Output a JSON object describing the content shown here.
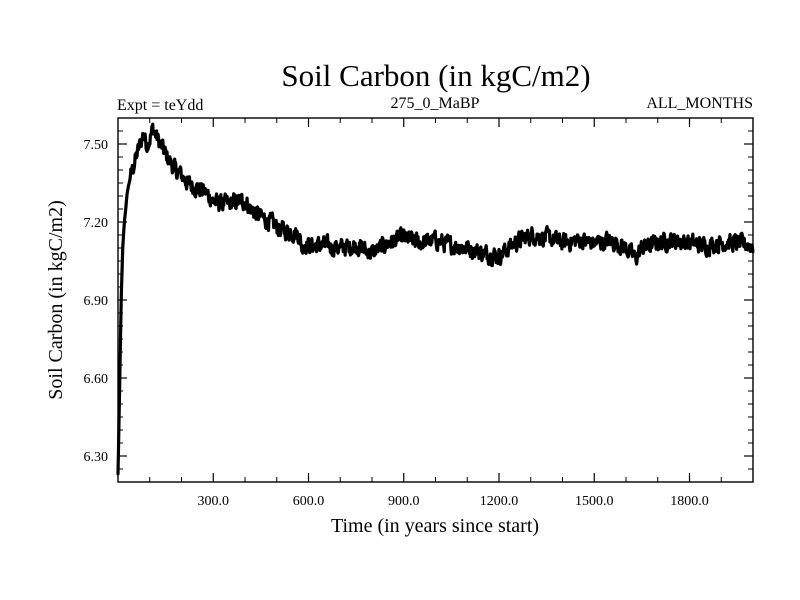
{
  "chart_data": {
    "type": "line",
    "title": "Soil Carbon (in kgC/m2)",
    "subtitle_left": "Expt = teYdd",
    "subtitle_center": "275_0_MaBP",
    "subtitle_right": "ALL_MONTHS",
    "xlabel": "Time (in years since start)",
    "ylabel": "Soil Carbon (in kgC/m2)",
    "xlim": [
      0,
      2000
    ],
    "ylim": [
      6.2,
      7.6
    ],
    "xticks": [
      300,
      600,
      900,
      1200,
      1500,
      1800
    ],
    "xtick_labels": [
      "300.0",
      "600.0",
      "900.0",
      "1200.0",
      "1500.0",
      "1800.0"
    ],
    "yticks": [
      6.3,
      6.6,
      6.9,
      7.2,
      7.5
    ],
    "ytick_labels": [
      "6.30",
      "6.60",
      "6.90",
      "7.20",
      "7.50"
    ],
    "grid": false,
    "series": [
      {
        "name": "Soil Carbon",
        "x": [
          0,
          5,
          10,
          15,
          20,
          30,
          40,
          50,
          60,
          70,
          80,
          90,
          100,
          110,
          120,
          150,
          180,
          200,
          220,
          250,
          280,
          300,
          320,
          350,
          380,
          400,
          420,
          450,
          480,
          500,
          520,
          550,
          570,
          580,
          590,
          600,
          650,
          700,
          750,
          800,
          850,
          900,
          950,
          1000,
          1050,
          1100,
          1150,
          1200,
          1250,
          1300,
          1350,
          1400,
          1450,
          1500,
          1550,
          1600,
          1630,
          1650,
          1700,
          1750,
          1800,
          1850,
          1900,
          1950,
          2000
        ],
        "y": [
          6.23,
          6.55,
          6.9,
          7.1,
          7.2,
          7.32,
          7.38,
          7.42,
          7.46,
          7.5,
          7.54,
          7.5,
          7.52,
          7.56,
          7.53,
          7.46,
          7.4,
          7.38,
          7.35,
          7.33,
          7.31,
          7.28,
          7.27,
          7.27,
          7.28,
          7.28,
          7.25,
          7.22,
          7.2,
          7.18,
          7.17,
          7.16,
          7.15,
          7.1,
          7.12,
          7.11,
          7.11,
          7.1,
          7.11,
          7.08,
          7.12,
          7.14,
          7.12,
          7.13,
          7.11,
          7.1,
          7.08,
          7.07,
          7.12,
          7.15,
          7.14,
          7.12,
          7.13,
          7.12,
          7.13,
          7.1,
          7.06,
          7.1,
          7.12,
          7.13,
          7.12,
          7.11,
          7.12,
          7.12,
          7.11
        ]
      }
    ]
  }
}
